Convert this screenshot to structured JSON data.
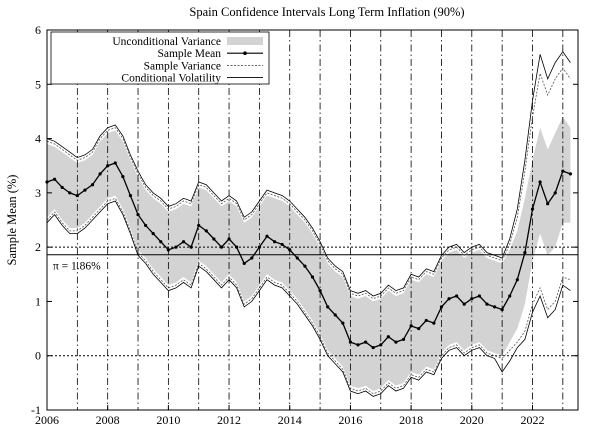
{
  "chart_data": {
    "type": "line",
    "title": "Spain Confidence Intervals Long Term Inflation (90%)",
    "xlabel": "",
    "ylabel": "Sample Mean (%)",
    "xlim": [
      2006,
      2023.5
    ],
    "ylim": [
      -1,
      6
    ],
    "x_ticks": [
      "2006",
      "2008",
      "2010",
      "2012",
      "2014",
      "2016",
      "2018",
      "2020",
      "2022"
    ],
    "y_ticks": [
      "-1",
      "0",
      "1",
      "2",
      "3",
      "4",
      "5",
      "6"
    ],
    "grid": false,
    "legend_position": "top-left",
    "annual_vertical_lines": [
      2007,
      2008,
      2009,
      2010,
      2011,
      2012,
      2013,
      2014,
      2015,
      2016,
      2017,
      2018,
      2019,
      2020,
      2021,
      2022,
      2023
    ],
    "reference_lines": [
      {
        "y": 2.0,
        "style": "dotted"
      },
      {
        "y": 0.0,
        "style": "dotted"
      },
      {
        "y": 1.86,
        "style": "solid",
        "label": "π = 1.86%"
      }
    ],
    "series": [
      {
        "name": "Sample Mean",
        "x": [
          2006.0,
          2006.25,
          2006.5,
          2006.75,
          2007.0,
          2007.25,
          2007.5,
          2007.75,
          2008.0,
          2008.25,
          2008.5,
          2008.75,
          2009.0,
          2009.25,
          2009.5,
          2009.75,
          2010.0,
          2010.25,
          2010.5,
          2010.75,
          2011.0,
          2011.25,
          2011.5,
          2011.75,
          2012.0,
          2012.25,
          2012.5,
          2012.75,
          2013.0,
          2013.25,
          2013.5,
          2013.75,
          2014.0,
          2014.25,
          2014.5,
          2014.75,
          2015.0,
          2015.25,
          2015.5,
          2015.75,
          2016.0,
          2016.25,
          2016.5,
          2016.75,
          2017.0,
          2017.25,
          2017.5,
          2017.75,
          2018.0,
          2018.25,
          2018.5,
          2018.75,
          2019.0,
          2019.25,
          2019.5,
          2019.75,
          2020.0,
          2020.25,
          2020.5,
          2020.75,
          2021.0,
          2021.25,
          2021.5,
          2021.75,
          2022.0,
          2022.25,
          2022.5,
          2022.75,
          2023.0,
          2023.25
        ],
        "values": [
          3.2,
          3.25,
          3.1,
          3.0,
          2.95,
          3.05,
          3.15,
          3.35,
          3.5,
          3.55,
          3.3,
          2.95,
          2.6,
          2.4,
          2.25,
          2.1,
          1.95,
          2.0,
          2.1,
          2.0,
          2.4,
          2.3,
          2.15,
          2.0,
          2.15,
          2.0,
          1.7,
          1.8,
          2.0,
          2.2,
          2.1,
          2.05,
          1.95,
          1.8,
          1.65,
          1.45,
          1.2,
          0.9,
          0.75,
          0.6,
          0.25,
          0.2,
          0.25,
          0.15,
          0.2,
          0.35,
          0.25,
          0.3,
          0.55,
          0.5,
          0.65,
          0.6,
          0.9,
          1.05,
          1.1,
          0.95,
          1.05,
          1.1,
          0.95,
          0.9,
          0.85,
          1.1,
          1.4,
          1.9,
          2.7,
          3.2,
          2.8,
          3.0,
          3.4,
          3.35
        ]
      },
      {
        "name": "Unconditional Variance",
        "upper": [
          3.9,
          3.85,
          3.75,
          3.65,
          3.55,
          3.6,
          3.7,
          3.95,
          4.1,
          4.15,
          3.95,
          3.6,
          3.3,
          3.05,
          2.9,
          2.8,
          2.65,
          2.7,
          2.8,
          2.75,
          3.1,
          3.05,
          2.9,
          2.75,
          2.85,
          2.75,
          2.45,
          2.55,
          2.75,
          2.95,
          2.9,
          2.85,
          2.75,
          2.6,
          2.45,
          2.25,
          2.0,
          1.7,
          1.55,
          1.45,
          1.1,
          1.05,
          1.1,
          1.0,
          1.05,
          1.2,
          1.1,
          1.15,
          1.4,
          1.35,
          1.5,
          1.45,
          1.75,
          1.9,
          1.95,
          1.8,
          1.9,
          1.95,
          1.8,
          1.75,
          1.7,
          1.95,
          2.3,
          2.9,
          3.6,
          4.2,
          3.8,
          4.1,
          4.4,
          4.2
        ],
        "lower": [
          2.55,
          2.7,
          2.5,
          2.35,
          2.35,
          2.45,
          2.6,
          2.75,
          2.9,
          2.95,
          2.7,
          2.35,
          1.95,
          1.8,
          1.6,
          1.45,
          1.3,
          1.35,
          1.45,
          1.35,
          1.75,
          1.65,
          1.5,
          1.35,
          1.5,
          1.35,
          1.0,
          1.1,
          1.3,
          1.5,
          1.4,
          1.35,
          1.2,
          1.05,
          0.85,
          0.65,
          0.4,
          0.1,
          -0.05,
          -0.2,
          -0.55,
          -0.6,
          -0.55,
          -0.65,
          -0.6,
          -0.45,
          -0.55,
          -0.5,
          -0.3,
          -0.35,
          -0.2,
          -0.25,
          0.05,
          0.2,
          0.25,
          0.1,
          0.2,
          0.25,
          0.1,
          0.05,
          0.0,
          0.25,
          0.5,
          0.95,
          1.75,
          2.25,
          1.85,
          2.0,
          2.45,
          2.45
        ]
      },
      {
        "name": "Sample Variance",
        "upper": [
          3.95,
          3.9,
          3.8,
          3.7,
          3.6,
          3.65,
          3.75,
          4.0,
          4.15,
          4.2,
          4.0,
          3.65,
          3.35,
          3.1,
          2.95,
          2.85,
          2.7,
          2.75,
          2.85,
          2.8,
          3.15,
          3.1,
          2.95,
          2.8,
          2.9,
          2.8,
          2.5,
          2.6,
          2.8,
          3.0,
          2.95,
          2.9,
          2.8,
          2.65,
          2.5,
          2.3,
          2.05,
          1.75,
          1.6,
          1.5,
          1.15,
          1.1,
          1.15,
          1.05,
          1.1,
          1.25,
          1.15,
          1.2,
          1.45,
          1.4,
          1.55,
          1.5,
          1.8,
          1.95,
          2.0,
          1.85,
          1.95,
          2.0,
          1.85,
          1.8,
          1.75,
          2.05,
          2.55,
          3.4,
          4.4,
          5.2,
          4.8,
          5.1,
          5.3,
          5.1
        ],
        "lower": [
          2.5,
          2.65,
          2.45,
          2.3,
          2.3,
          2.4,
          2.55,
          2.7,
          2.85,
          2.9,
          2.65,
          2.3,
          1.9,
          1.75,
          1.55,
          1.4,
          1.25,
          1.3,
          1.4,
          1.3,
          1.7,
          1.6,
          1.45,
          1.3,
          1.45,
          1.3,
          0.95,
          1.05,
          1.25,
          1.45,
          1.35,
          1.3,
          1.15,
          1.0,
          0.8,
          0.6,
          0.35,
          0.05,
          -0.1,
          -0.25,
          -0.6,
          -0.65,
          -0.6,
          -0.7,
          -0.65,
          -0.5,
          -0.6,
          -0.55,
          -0.35,
          -0.4,
          -0.25,
          -0.3,
          0.0,
          0.15,
          0.2,
          0.05,
          0.15,
          0.2,
          0.05,
          0.0,
          -0.05,
          0.1,
          0.25,
          0.45,
          0.95,
          1.25,
          0.85,
          1.0,
          1.45,
          1.4
        ]
      },
      {
        "name": "Conditional Volatility",
        "upper": [
          4.0,
          3.95,
          3.85,
          3.75,
          3.65,
          3.7,
          3.8,
          4.05,
          4.2,
          4.25,
          4.05,
          3.7,
          3.4,
          3.15,
          3.0,
          2.9,
          2.75,
          2.8,
          2.9,
          2.85,
          3.2,
          3.15,
          3.0,
          2.85,
          2.95,
          2.85,
          2.55,
          2.65,
          2.85,
          3.05,
          3.0,
          2.95,
          2.85,
          2.7,
          2.55,
          2.35,
          2.1,
          1.8,
          1.65,
          1.55,
          1.2,
          1.15,
          1.2,
          1.1,
          1.15,
          1.3,
          1.2,
          1.25,
          1.5,
          1.45,
          1.6,
          1.55,
          1.85,
          2.0,
          2.05,
          1.9,
          2.0,
          2.05,
          1.9,
          1.85,
          1.8,
          2.15,
          2.7,
          3.6,
          4.7,
          5.55,
          5.1,
          5.4,
          5.6,
          5.4
        ],
        "lower": [
          2.45,
          2.6,
          2.4,
          2.25,
          2.25,
          2.35,
          2.5,
          2.65,
          2.8,
          2.85,
          2.6,
          2.25,
          1.85,
          1.7,
          1.5,
          1.35,
          1.2,
          1.25,
          1.35,
          1.25,
          1.65,
          1.55,
          1.4,
          1.25,
          1.4,
          1.25,
          0.9,
          1.0,
          1.2,
          1.4,
          1.3,
          1.25,
          1.1,
          0.95,
          0.75,
          0.55,
          0.3,
          0.0,
          -0.15,
          -0.3,
          -0.65,
          -0.7,
          -0.65,
          -0.75,
          -0.7,
          -0.55,
          -0.65,
          -0.6,
          -0.4,
          -0.45,
          -0.3,
          -0.35,
          -0.05,
          0.1,
          0.15,
          0.0,
          0.1,
          0.15,
          0.0,
          -0.05,
          -0.3,
          -0.1,
          0.15,
          0.3,
          0.8,
          1.1,
          0.7,
          0.85,
          1.3,
          1.2
        ]
      }
    ],
    "colors": {
      "band": "#d3d3d3",
      "mean": "#000000",
      "sample_variance": "#555555",
      "conditional_volatility": "#000000"
    }
  }
}
